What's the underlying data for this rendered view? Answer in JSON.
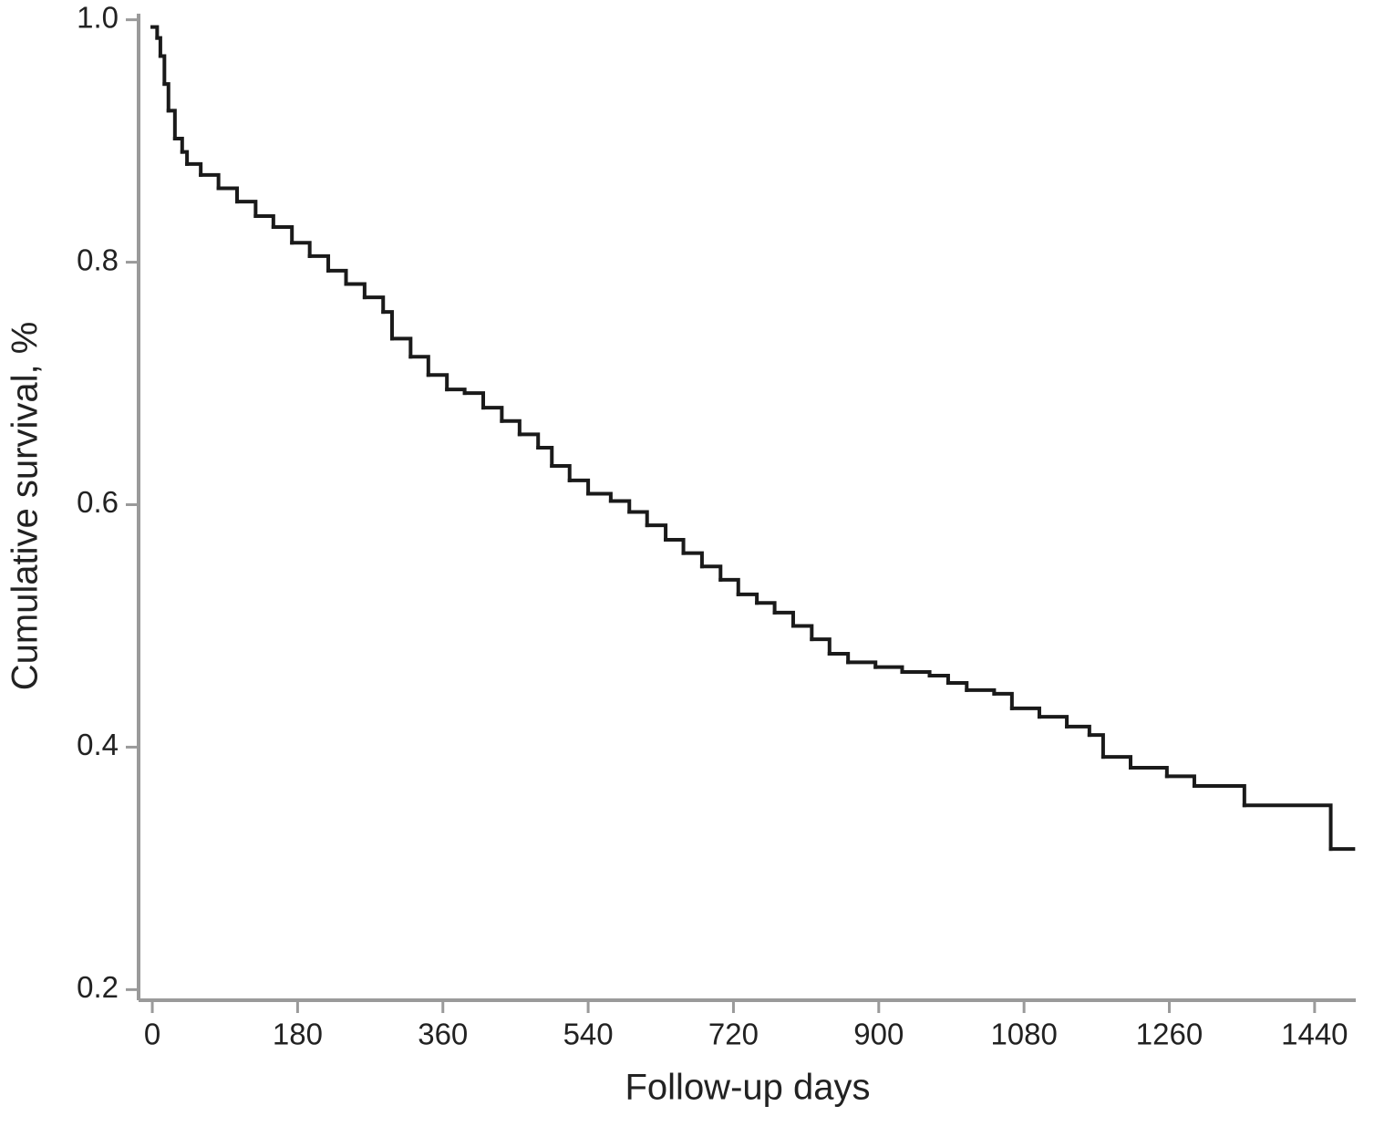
{
  "chart_data": {
    "type": "step",
    "x_label": "Follow-up days",
    "y_label": "Cumulative survival, %",
    "color": "#1a1a1a",
    "xlim": [
      -17,
      1491
    ],
    "ylim": [
      0.195,
      1.005
    ],
    "xticks": [
      0,
      180,
      360,
      540,
      720,
      900,
      1080,
      1260,
      1440
    ],
    "yticks": [
      0.2,
      0.4,
      0.6,
      0.8,
      {
        "value": 1.0,
        "label": "1.0"
      }
    ],
    "x": [
      0,
      6,
      10,
      15,
      20,
      28,
      37,
      43,
      60,
      82,
      105,
      128,
      150,
      173,
      195,
      218,
      240,
      263,
      286,
      297,
      320,
      342,
      365,
      387,
      410,
      433,
      455,
      478,
      495,
      517,
      540,
      568,
      591,
      613,
      636,
      658,
      681,
      704,
      726,
      749,
      771,
      794,
      817,
      839,
      862,
      896,
      929,
      963,
      986,
      1009,
      1043,
      1065,
      1099,
      1133,
      1161,
      1178,
      1212,
      1257,
      1291,
      1353,
      1460,
      1488
    ],
    "values": [
      0.994,
      0.985,
      0.97,
      0.947,
      0.925,
      0.902,
      0.891,
      0.881,
      0.872,
      0.861,
      0.85,
      0.838,
      0.829,
      0.816,
      0.805,
      0.793,
      0.782,
      0.771,
      0.759,
      0.737,
      0.722,
      0.707,
      0.695,
      0.692,
      0.68,
      0.669,
      0.658,
      0.647,
      0.632,
      0.62,
      0.609,
      0.603,
      0.594,
      0.583,
      0.571,
      0.56,
      0.549,
      0.538,
      0.526,
      0.519,
      0.511,
      0.5,
      0.489,
      0.477,
      0.47,
      0.466,
      0.462,
      0.459,
      0.453,
      0.447,
      0.444,
      0.432,
      0.425,
      0.417,
      0.41,
      0.392,
      0.383,
      0.376,
      0.368,
      0.352,
      0.316,
      0.316
    ]
  }
}
